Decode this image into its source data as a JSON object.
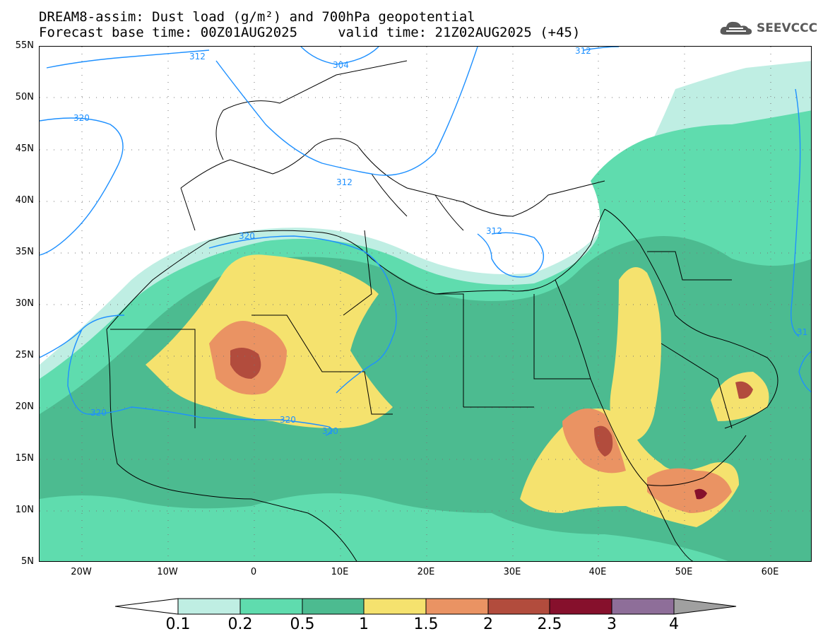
{
  "title": {
    "line1": "DREAM8-assim: Dust load (g/m²) and 700hPa geopotential",
    "line2": "Forecast base time: 00Z01AUG2025     valid time: 21Z02AUG2025 (+45)"
  },
  "logo": {
    "text": "SEEVCCC",
    "icon": "cloud-logo-icon"
  },
  "axes": {
    "lat_labels": [
      "55N",
      "50N",
      "45N",
      "40N",
      "35N",
      "30N",
      "25N",
      "20N",
      "15N",
      "10N",
      "5N"
    ],
    "lon_labels": [
      "20W",
      "10W",
      "0",
      "10E",
      "20E",
      "30E",
      "40E",
      "50E",
      "60E"
    ]
  },
  "colorbar": {
    "labels": [
      "0.1",
      "0.2",
      "0.5",
      "1",
      "1.5",
      "2",
      "2.5",
      "3",
      "4"
    ],
    "colors": [
      "#bfeee3",
      "#5fdcae",
      "#4cbb90",
      "#f5e26e",
      "#ea9363",
      "#b24c3d",
      "#86102c",
      "#8e6e99",
      "#a0a0a0"
    ]
  },
  "contour_labels": [
    "312",
    "304",
    "320",
    "312",
    "320",
    "312",
    "320",
    "320",
    "320",
    "312",
    "31"
  ],
  "colors": {
    "contour": "#1e90ff",
    "coast": "#000000"
  }
}
